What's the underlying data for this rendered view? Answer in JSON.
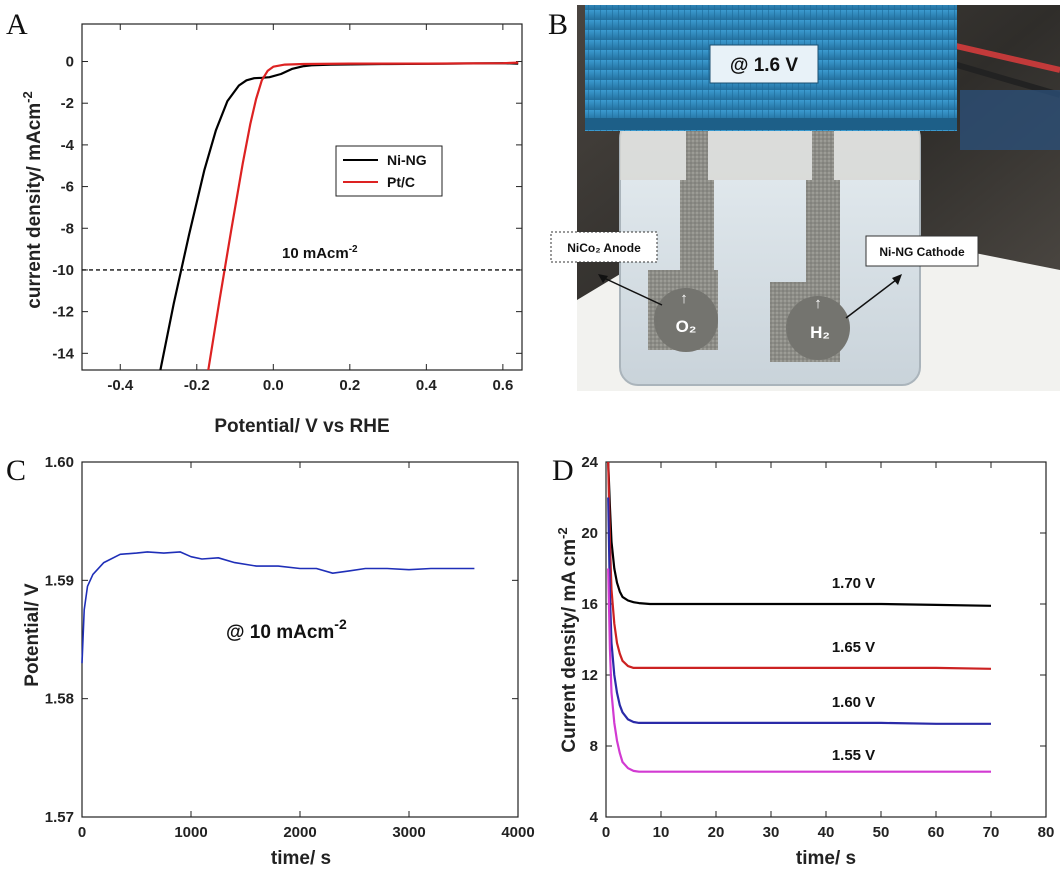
{
  "panels": {
    "a": {
      "letter": "A"
    },
    "b": {
      "letter": "B"
    },
    "c": {
      "letter": "C"
    },
    "d": {
      "letter": "D"
    }
  },
  "photo": {
    "voltage_label": "@ 1.6 V",
    "anode_label": "NiCo₂ Anode",
    "cathode_label": "Ni-NG Cathode",
    "gas_left": "O₂",
    "gas_right": "H₂",
    "colors": {
      "cap": "#2e86bd",
      "liquid": "#dce4ea",
      "electrode": "#8a8a84",
      "bg_dark": "#3f3c38"
    }
  },
  "chart_data": [
    {
      "id": "A",
      "type": "line",
      "xlabel": "Potential/ V vs RHE",
      "ylabel_main": "current density/ mAcm",
      "ylabel_sup": "-2",
      "xlim": [
        -0.5,
        0.65
      ],
      "ylim": [
        -14.8,
        1.8
      ],
      "xticks": [
        -0.4,
        -0.2,
        0.0,
        0.2,
        0.4,
        0.6
      ],
      "xtick_labels": [
        "-0.4",
        "-0.2",
        "0.0",
        "0.2",
        "0.4",
        "0.6"
      ],
      "yticks": [
        0,
        -2,
        -4,
        -6,
        -8,
        -10,
        -12,
        -14
      ],
      "ytick_labels": [
        "0",
        "-2",
        "-4",
        "-6",
        "-8",
        "-10",
        "-12",
        "-14"
      ],
      "legend": {
        "placement": "center-right",
        "entries": [
          "Ni-NG",
          "Pt/C"
        ]
      },
      "reference_line": {
        "y": -10,
        "label_main": "10 mAcm",
        "label_sup": "-2"
      },
      "series": [
        {
          "name": "Ni-NG",
          "color": "#000000",
          "x": [
            -0.295,
            -0.26,
            -0.22,
            -0.18,
            -0.15,
            -0.12,
            -0.09,
            -0.07,
            -0.05,
            -0.03,
            -0.01,
            0.02,
            0.05,
            0.08,
            0.1,
            0.15,
            0.3,
            0.45,
            0.6,
            0.64
          ],
          "y": [
            -14.8,
            -11.6,
            -8.3,
            -5.2,
            -3.3,
            -1.9,
            -1.15,
            -0.9,
            -0.8,
            -0.78,
            -0.75,
            -0.6,
            -0.35,
            -0.22,
            -0.18,
            -0.15,
            -0.12,
            -0.1,
            -0.08,
            -0.1
          ]
        },
        {
          "name": "Pt/C",
          "color": "#dd2222",
          "x": [
            -0.17,
            -0.14,
            -0.11,
            -0.08,
            -0.06,
            -0.045,
            -0.03,
            -0.015,
            0.0,
            0.03,
            0.08,
            0.2,
            0.4,
            0.6,
            0.64
          ],
          "y": [
            -14.8,
            -11.4,
            -8.1,
            -4.9,
            -3.0,
            -1.8,
            -0.9,
            -0.45,
            -0.25,
            -0.15,
            -0.12,
            -0.1,
            -0.1,
            -0.08,
            -0.05
          ]
        }
      ]
    },
    {
      "id": "C",
      "type": "line",
      "xlabel": "time/ s",
      "ylabel": "Potential/ V",
      "xlim": [
        0,
        4000
      ],
      "ylim": [
        1.57,
        1.6
      ],
      "xticks": [
        0,
        1000,
        2000,
        3000,
        4000
      ],
      "xtick_labels": [
        "0",
        "1000",
        "2000",
        "3000",
        "4000"
      ],
      "yticks": [
        1.57,
        1.58,
        1.59,
        1.6
      ],
      "ytick_labels": [
        "1.57",
        "1.58",
        "1.59",
        "1.60"
      ],
      "annotation": {
        "main": "@ 10 mAcm",
        "sup": "-2"
      },
      "series": [
        {
          "color": "#1f2fb8",
          "x": [
            0,
            20,
            50,
            100,
            200,
            350,
            500,
            600,
            750,
            900,
            1000,
            1100,
            1250,
            1400,
            1600,
            1800,
            2000,
            2150,
            2300,
            2450,
            2600,
            2800,
            3000,
            3200,
            3400,
            3600
          ],
          "y": [
            1.583,
            1.5875,
            1.5895,
            1.5905,
            1.5915,
            1.5922,
            1.5923,
            1.5924,
            1.5923,
            1.5924,
            1.592,
            1.5918,
            1.5919,
            1.5915,
            1.5912,
            1.5912,
            1.591,
            1.591,
            1.5906,
            1.5908,
            1.591,
            1.591,
            1.5909,
            1.591,
            1.591,
            1.591
          ]
        }
      ]
    },
    {
      "id": "D",
      "type": "line",
      "xlabel": "time/ s",
      "ylabel_main": "Current density/ mA cm",
      "ylabel_sup": "-2",
      "xlim": [
        0,
        80
      ],
      "ylim": [
        4,
        24
      ],
      "xticks": [
        0,
        10,
        20,
        30,
        40,
        50,
        60,
        70,
        80
      ],
      "xtick_labels": [
        "0",
        "10",
        "20",
        "30",
        "40",
        "50",
        "60",
        "70",
        "80"
      ],
      "yticks": [
        4,
        8,
        12,
        16,
        20,
        24
      ],
      "ytick_labels": [
        "4",
        "8",
        "12",
        "16",
        "20",
        "24"
      ],
      "series": [
        {
          "name": "1.70 V",
          "color": "#000000",
          "label_x": 45,
          "label_y": 16.9,
          "x": [
            0.4,
            0.7,
            1.0,
            1.5,
            2.0,
            2.5,
            3.0,
            4.0,
            5.0,
            6.0,
            8.0,
            10,
            20,
            30,
            40,
            50,
            60,
            70
          ],
          "y": [
            24,
            21.5,
            19.5,
            18.0,
            17.2,
            16.7,
            16.4,
            16.2,
            16.1,
            16.05,
            16.0,
            16.0,
            16.0,
            16.0,
            16.0,
            16.0,
            15.95,
            15.9
          ]
        },
        {
          "name": "1.65 V",
          "color": "#cc2222",
          "label_x": 45,
          "label_y": 13.3,
          "x": [
            0.4,
            0.7,
            1.0,
            1.5,
            2.0,
            2.5,
            3.0,
            4.0,
            5.0,
            6.0,
            8.0,
            10,
            20,
            30,
            40,
            50,
            60,
            70
          ],
          "y": [
            24,
            19.5,
            16.8,
            14.9,
            13.8,
            13.2,
            12.8,
            12.5,
            12.4,
            12.4,
            12.4,
            12.4,
            12.4,
            12.4,
            12.4,
            12.4,
            12.4,
            12.35
          ]
        },
        {
          "name": "1.60 V",
          "color": "#2a2aa8",
          "label_x": 45,
          "label_y": 10.2,
          "x": [
            0.4,
            0.7,
            1.0,
            1.5,
            2.0,
            2.5,
            3.0,
            4.0,
            5.0,
            6.0,
            8.0,
            10,
            20,
            30,
            40,
            50,
            60,
            70
          ],
          "y": [
            22,
            16.5,
            13.8,
            12.0,
            11.0,
            10.3,
            9.9,
            9.5,
            9.35,
            9.3,
            9.3,
            9.3,
            9.3,
            9.3,
            9.3,
            9.3,
            9.25,
            9.25
          ]
        },
        {
          "name": "1.55 V",
          "color": "#d23ad2",
          "label_x": 45,
          "label_y": 7.2,
          "x": [
            0.4,
            0.7,
            1.0,
            1.5,
            2.0,
            2.5,
            3.0,
            4.0,
            5.0,
            6.0,
            8.0,
            10,
            20,
            30,
            40,
            50,
            60,
            70
          ],
          "y": [
            18,
            13.5,
            11.0,
            9.3,
            8.3,
            7.6,
            7.1,
            6.75,
            6.6,
            6.55,
            6.55,
            6.55,
            6.55,
            6.55,
            6.55,
            6.55,
            6.55,
            6.55
          ]
        }
      ]
    }
  ]
}
